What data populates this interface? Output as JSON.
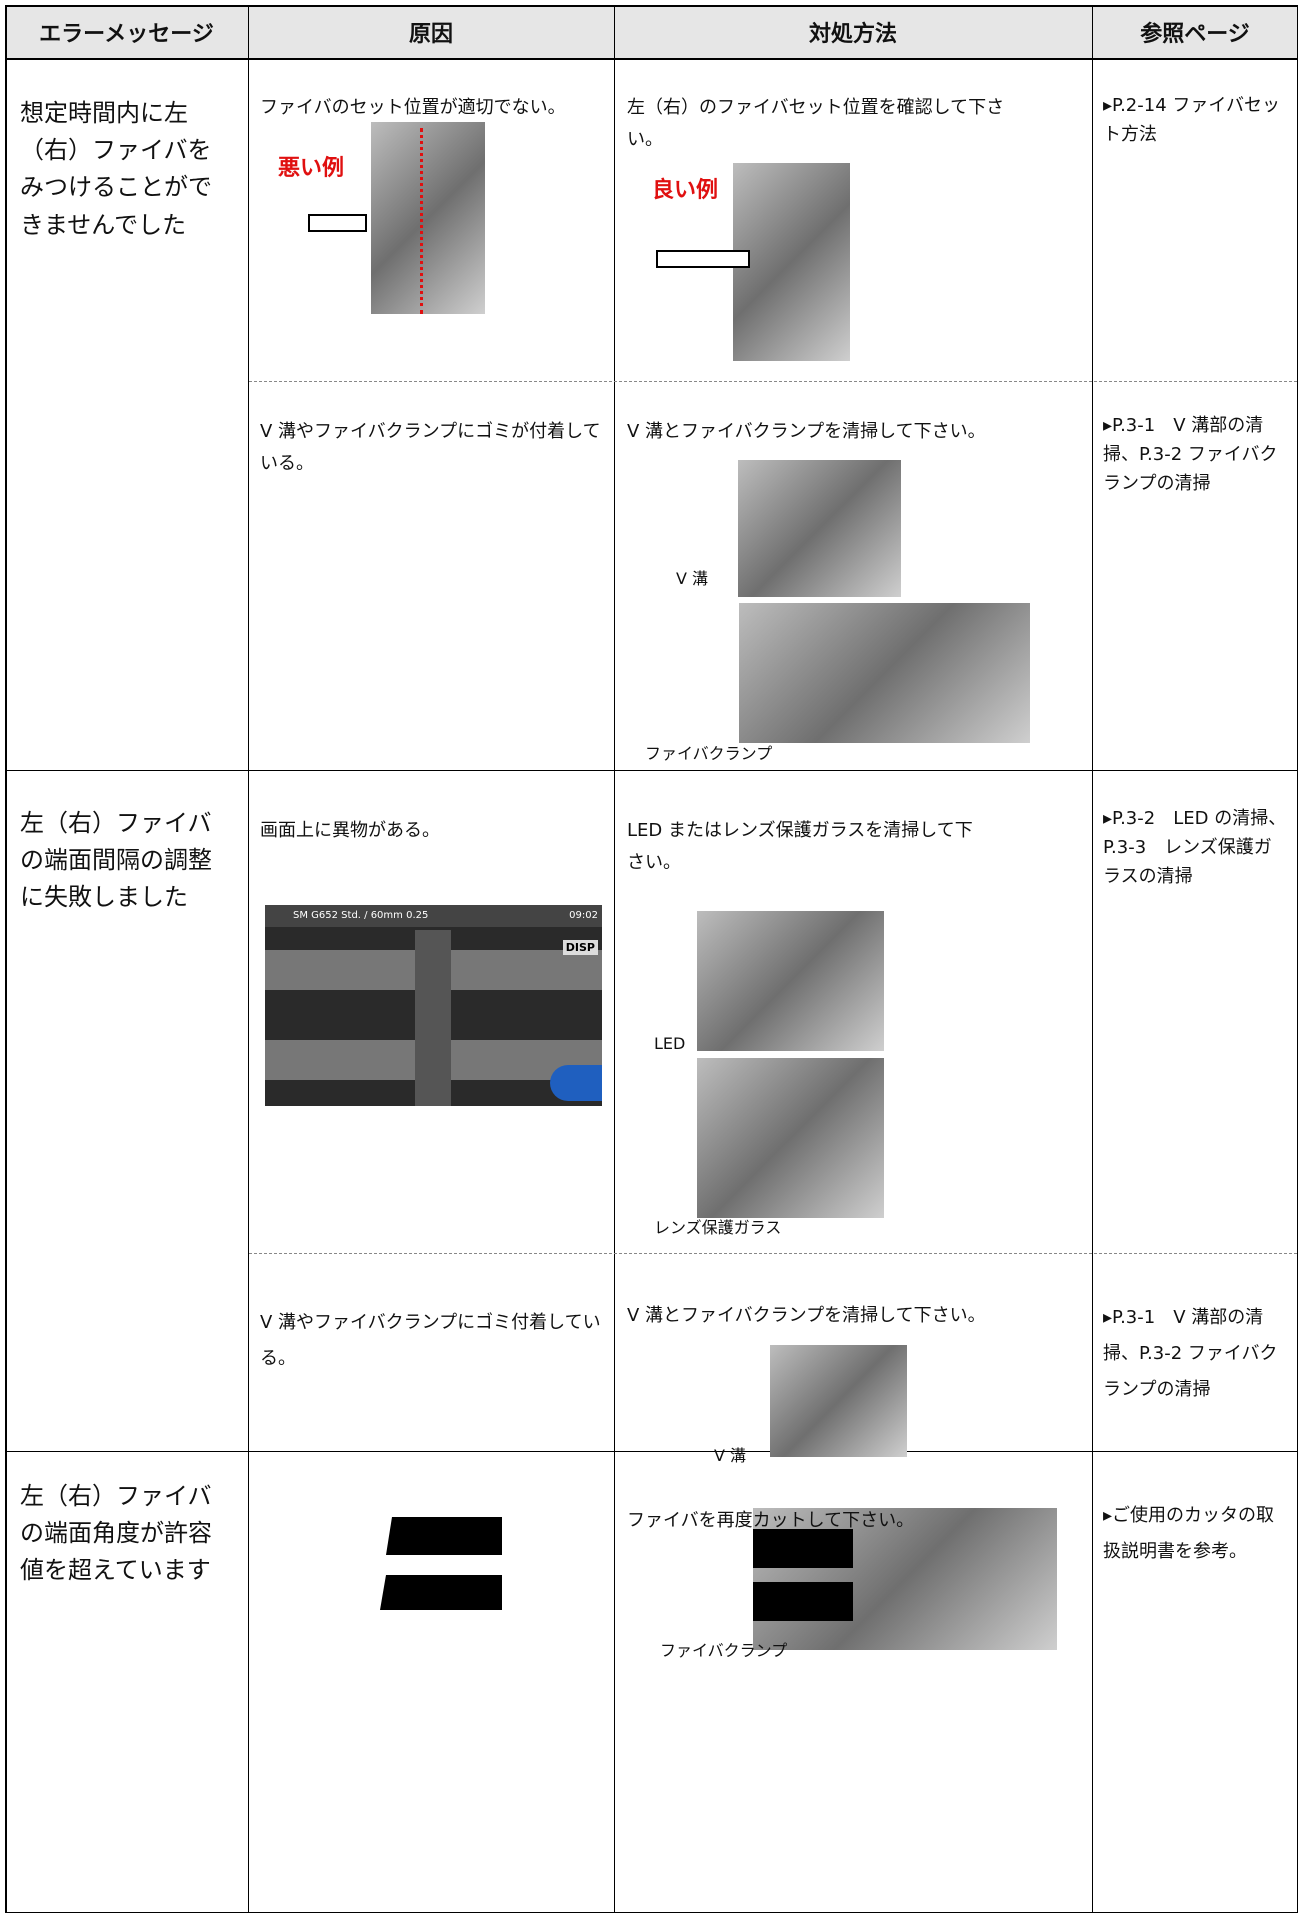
{
  "header": [
    "エラーメッセージ",
    "原因",
    "対処方法",
    "参照ページ"
  ],
  "rows": [
    {
      "error": "想定時間内に左（右）ファイバをみつけることができませんでした",
      "items": [
        {
          "cause": "ファイバのセット位置が適切でない。",
          "cause_label": "悪い例",
          "remedy": "左（右）のファイバセット位置を確認して下さい。",
          "remedy_label": "良い例",
          "reference": "▸P.2-14 ファイバセット方法"
        },
        {
          "cause": "V 溝やファイバクランプにゴミが付着している。",
          "remedy": "V 溝とファイバクランプを清掃して下さい。",
          "remedy_labels": [
            "V 溝",
            "ファイバクランプ"
          ],
          "reference": "▸P.3-1　V 溝部の清掃、P.3-2 ファイバクランプの清掃"
        }
      ]
    },
    {
      "error": "左（右）ファイバの端面間隔の調整に失敗しました",
      "items": [
        {
          "cause": "画面上に異物がある。",
          "screen": [
            "SM G652 Std. / 60mm 0.25",
            "09:02",
            "DISP"
          ],
          "remedy": "LED またはレンズ保護ガラスを清掃して下さい。",
          "remedy_labels": [
            "LED",
            "レンズ保護ガラス"
          ],
          "reference": "▸P.3-2　LED の清掃、P.3-3　レンズ保護ガラスの清掃"
        },
        {
          "cause": "V 溝やファイバクランプにゴミ付着している。",
          "remedy": "V 溝とファイバクランプを清掃して下さい。",
          "remedy_labels": [
            "V 溝",
            "ファイバクランプ"
          ],
          "reference": "▸P.3-1　V 溝部の清掃、P.3-2 ファイバクランプの清掃"
        }
      ]
    },
    {
      "error": "左（右）ファイバの端面角度が許容値を超えています",
      "items": [
        {
          "remedy": "ファイバを再度カットして下さい。",
          "reference": "▸ご使用のカッタの取扱説明書を参考。"
        }
      ]
    }
  ]
}
